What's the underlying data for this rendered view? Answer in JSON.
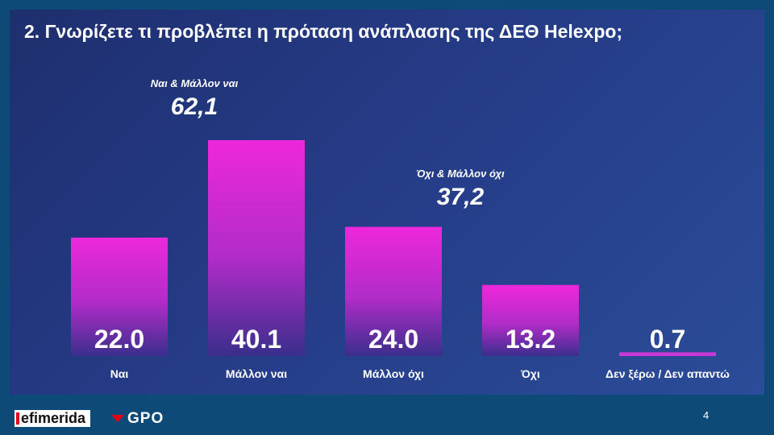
{
  "slide": {
    "title": "2. Γνωρίζετε τι προβλέπει η πρόταση ανάπλασης της ΔΕΘ Helexpo;",
    "page_number": "4"
  },
  "groups": [
    {
      "label": "Ναι & Μάλλον ναι",
      "value": "62,1"
    },
    {
      "label": "Όχι & Μάλλον όχι",
      "value": "37,2"
    }
  ],
  "chart_data": {
    "type": "bar",
    "categories": [
      "Ναι",
      "Μάλλον ναι",
      "Μάλλον όχι",
      "Όχι",
      "Δεν ξέρω / Δεν απαντώ"
    ],
    "values": [
      22.0,
      40.1,
      24.0,
      13.2,
      0.7
    ],
    "value_labels": [
      "22.0",
      "40.1",
      "24.0",
      "13.2",
      "0.7"
    ],
    "title": "2. Γνωρίζετε τι προβλέπει η πρόταση ανάπλασης της ΔΕΘ Helexpo;",
    "xlabel": "",
    "ylabel": "",
    "ylim": [
      0,
      40.1
    ],
    "grid": false,
    "colors": {
      "bar_top": "#ee28dc",
      "bar_bottom": "#3a2e8c",
      "accent": "#c938d6"
    }
  },
  "footer": {
    "brand_left": "efimerida",
    "brand_right": "GPO"
  }
}
